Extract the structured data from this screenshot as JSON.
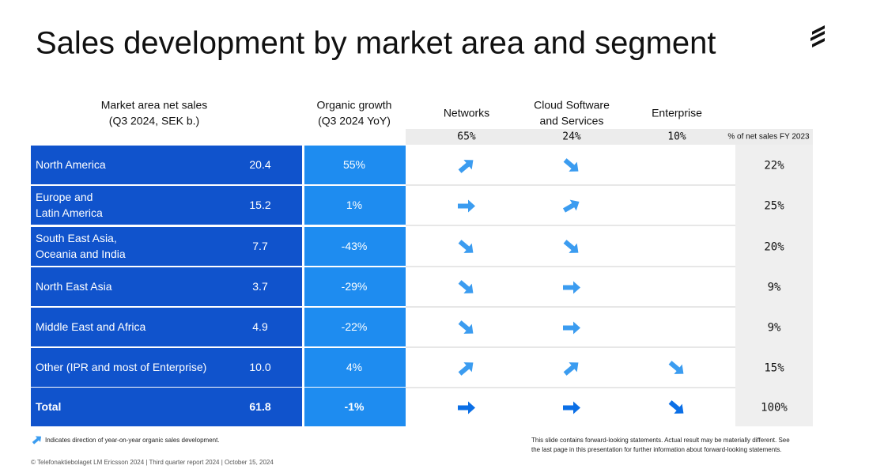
{
  "header": {
    "title": "Sales development by market area and segment"
  },
  "columns": {
    "sales": [
      "Market area net sales",
      "(Q3 2024, SEK b.)"
    ],
    "growth": [
      "Organic growth",
      "(Q3 2024 YoY)"
    ],
    "segments": [
      {
        "label": [
          "Networks"
        ],
        "share": "65%"
      },
      {
        "label": [
          "Cloud Software",
          "and Services"
        ],
        "share": "24%"
      },
      {
        "label": [
          "Enterprise"
        ],
        "share": "10%"
      }
    ],
    "share": "% of net sales FY 2023"
  },
  "table": {
    "rows": [
      {
        "area": [
          "North America"
        ],
        "sales": "20.4",
        "growth": "55%",
        "share": "22%"
      },
      {
        "area": [
          "Europe and",
          "Latin America"
        ],
        "sales": "15.2",
        "growth": "1%",
        "share": "25%"
      },
      {
        "area": [
          "South East Asia,",
          "Oceania and India"
        ],
        "sales": "7.7",
        "growth": "-43%",
        "share": "20%"
      },
      {
        "area": [
          "North East Asia"
        ],
        "sales": "3.7",
        "growth": "-29%",
        "share": "9%"
      },
      {
        "area": [
          "Middle East and Africa"
        ],
        "sales": "4.9",
        "growth": "-22%",
        "share": "9%"
      },
      {
        "area": [
          "Other (IPR and most of Enterprise)"
        ],
        "sales": "10.0",
        "growth": "4%",
        "share": "15%"
      },
      {
        "area": [
          "Total"
        ],
        "sales": "61.8",
        "growth": "-1%",
        "share": "100%"
      }
    ]
  },
  "footer": {
    "legend": "Indicates direction of year-on-year organic sales development.",
    "disclaimer": [
      "This slide contains forward-looking statements. Actual result may be materially different. See",
      "the last page in this presentation for further information about forward-looking statements."
    ],
    "copyright": "© Telefonaktiebolaget LM Ericsson 2024  | Third quarter report 2024 | October 15, 2024"
  }
}
